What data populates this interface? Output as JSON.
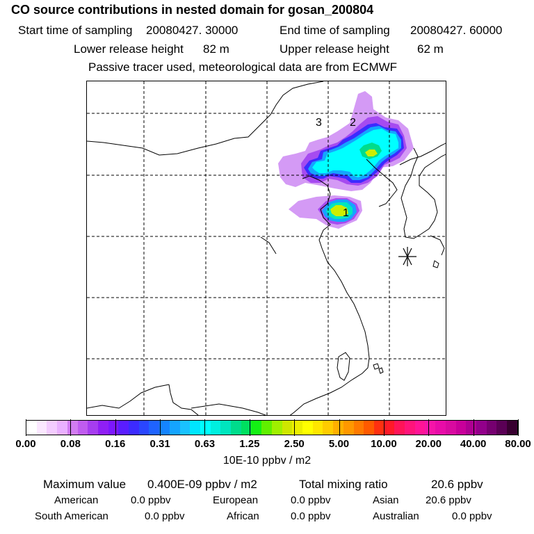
{
  "header": {
    "title": "CO  source contributions in nested domain for gosan_200804",
    "start_label": "Start time of sampling",
    "start_value": "20080427. 30000",
    "end_label": "End time of sampling",
    "end_value": "20080427. 60000",
    "lower_label": "Lower release height",
    "lower_value": "82 m",
    "upper_label": "Upper release height",
    "upper_value": "62 m",
    "note": "Passive tracer used, meteorological data are from ECMWF"
  },
  "map": {
    "markers": [
      {
        "label": "3"
      },
      {
        "label": "2"
      },
      {
        "label": "1"
      }
    ],
    "receptor_symbol": "asterisk",
    "colors": {
      "land": "#ffffff",
      "grid": "#000000",
      "coast": "#000000"
    }
  },
  "colorbar": {
    "labels": [
      "0.00",
      "0.08",
      "0.16",
      "0.31",
      "0.63",
      "1.25",
      "2.50",
      "5.00",
      "10.00",
      "20.00",
      "40.00",
      "80.00"
    ],
    "colors": [
      "#ffffff",
      "#fbe8ff",
      "#f4ccff",
      "#eab0ff",
      "#d27cf2",
      "#c05cf0",
      "#a63df0",
      "#8f1ff5",
      "#7c17ff",
      "#5a1dff",
      "#3c2bff",
      "#2a46ff",
      "#1f63ff",
      "#1584ff",
      "#15a4ff",
      "#1ac2ff",
      "#00e6ff",
      "#00ffff",
      "#00f0df",
      "#00e6be",
      "#00dc8c",
      "#00e060",
      "#14f014",
      "#60f000",
      "#a0f000",
      "#cfe600",
      "#ecf000",
      "#ffff00",
      "#ffe600",
      "#ffcc00",
      "#ffb000",
      "#ff9800",
      "#ff7a00",
      "#ff5a00",
      "#ff3010",
      "#ff1a28",
      "#ff1458",
      "#ff147a",
      "#ff1496",
      "#f514a8",
      "#e80ca8",
      "#d80aa0",
      "#c8009a",
      "#ae0092",
      "#92008a",
      "#760070",
      "#5a0055",
      "#380030"
    ],
    "unit": "10E-10 ppbv / m2"
  },
  "stats": {
    "max_label": "Maximum value",
    "max_value": "0.400E-09 ppbv / m2",
    "total_label": "Total mixing ratio",
    "total_value": "20.6 ppbv"
  },
  "regions": [
    {
      "name": "American",
      "value": "0.0 ppbv"
    },
    {
      "name": "European",
      "value": "0.0 ppbv"
    },
    {
      "name": "Asian",
      "value": "20.6 ppbv"
    },
    {
      "name": "South American",
      "value": "0.0 ppbv"
    },
    {
      "name": "African",
      "value": "0.0 ppbv"
    },
    {
      "name": "Australian",
      "value": "0.0 ppbv"
    }
  ]
}
